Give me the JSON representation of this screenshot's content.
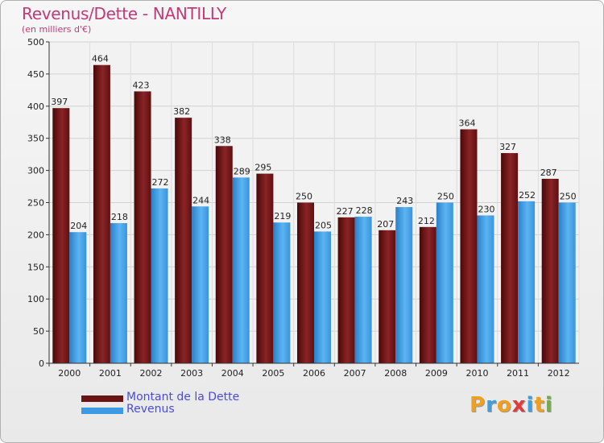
{
  "title": "Revenus/Dette - NANTILLY",
  "subtitle": "(en milliers d'€)",
  "logo": {
    "letters": [
      "P",
      "r",
      "o",
      "x",
      "i",
      "t",
      "i"
    ],
    "colors": [
      "#f0a020",
      "#3aa0e0",
      "#f0a020",
      "#e03a3a",
      "#3aa0e0",
      "#f0a020",
      "#70b040"
    ]
  },
  "colors": {
    "dette": "#6b1416",
    "revenus": "#3d9ae0"
  },
  "chart_data": {
    "type": "bar",
    "title": "Revenus/Dette - NANTILLY",
    "subtitle": "(en milliers d'€)",
    "categories": [
      "2000",
      "2001",
      "2002",
      "2003",
      "2004",
      "2005",
      "2006",
      "2007",
      "2008",
      "2009",
      "2010",
      "2011",
      "2012"
    ],
    "series": [
      {
        "name": "Montant de la Dette",
        "values": [
          397,
          464,
          423,
          382,
          338,
          295,
          250,
          227,
          207,
          212,
          364,
          327,
          287
        ]
      },
      {
        "name": "Revenus",
        "values": [
          204,
          218,
          272,
          244,
          289,
          219,
          205,
          228,
          243,
          250,
          230,
          252,
          250
        ]
      }
    ],
    "ylim": [
      0,
      500
    ],
    "yticks": [
      "0",
      "50",
      "100",
      "150",
      "200",
      "250",
      "300",
      "350",
      "400",
      "450",
      "500"
    ],
    "grid": true,
    "legend": "bottom-left"
  }
}
